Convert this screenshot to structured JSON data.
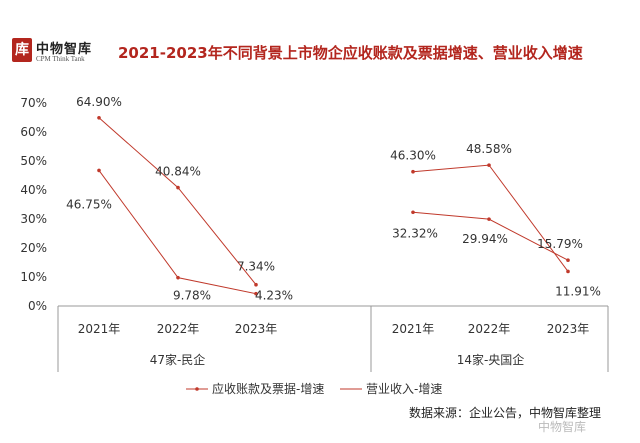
{
  "header": {
    "logo_cn": "中物智库",
    "logo_en": "CPM Think Tank",
    "logo_mark": "库"
  },
  "source": "数据来源：企业公告，中物智库整理",
  "watermark": "中物智库",
  "colors": {
    "accent": "#b3261e",
    "line": "#c0392b",
    "axis": "#999999"
  },
  "chart_data": {
    "type": "line",
    "title": "2021-2023年不同背景上市物企应收账款及票据增速、营业收入增速",
    "ylim": [
      0,
      70
    ],
    "yticks": [
      "0%",
      "10%",
      "20%",
      "30%",
      "40%",
      "50%",
      "60%",
      "70%"
    ],
    "groups": [
      {
        "name": "47家-民企",
        "categories": [
          "2021年",
          "2022年",
          "2023年"
        ],
        "series": [
          {
            "name": "应收账款及票据-增速",
            "values": [
              64.9,
              40.84,
              7.34
            ],
            "labels": [
              "64.90%",
              "40.84%",
              "7.34%"
            ]
          },
          {
            "name": "营业收入-增速",
            "values": [
              46.75,
              9.78,
              4.23
            ],
            "labels": [
              "46.75%",
              "9.78%",
              "4.23%"
            ]
          }
        ]
      },
      {
        "name": "14家-央国企",
        "categories": [
          "2021年",
          "2022年",
          "2023年"
        ],
        "series": [
          {
            "name": "应收账款及票据-增速",
            "values": [
              46.3,
              48.58,
              11.91
            ],
            "labels": [
              "46.30%",
              "48.58%",
              "11.91%"
            ]
          },
          {
            "name": "营业收入-增速",
            "values": [
              32.32,
              29.94,
              15.79
            ],
            "labels": [
              "32.32%",
              "29.94%",
              "15.79%"
            ]
          }
        ]
      }
    ],
    "legend": [
      "应收账款及票据-增速",
      "营业收入-增速"
    ],
    "legend_position": "bottom",
    "grid": false
  }
}
